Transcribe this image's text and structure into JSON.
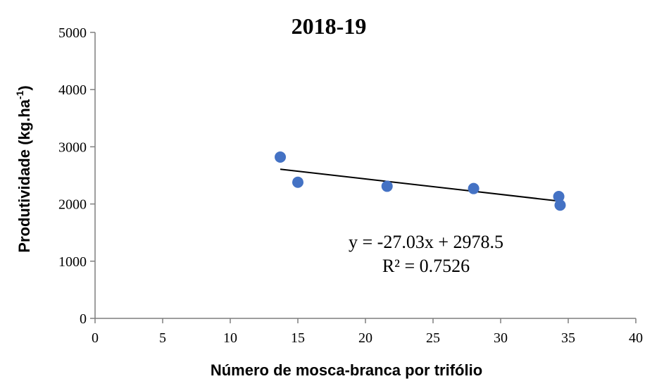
{
  "chart_data": {
    "type": "scatter",
    "title": "2018-19",
    "xlabel": "Número de mosca-branca por trifólio",
    "ylabel_main": "Produtividade (kg.ha",
    "ylabel_sup": "-1",
    "ylabel_close": ")",
    "xlim": [
      0,
      40
    ],
    "ylim": [
      0,
      5000
    ],
    "x_ticks": [
      0,
      5,
      10,
      15,
      20,
      25,
      30,
      35,
      40
    ],
    "y_ticks": [
      0,
      1000,
      2000,
      3000,
      4000,
      5000
    ],
    "grid": false,
    "legend": "none",
    "points": [
      {
        "x": 13.7,
        "y": 2820
      },
      {
        "x": 15.0,
        "y": 2380
      },
      {
        "x": 21.6,
        "y": 2310
      },
      {
        "x": 28.0,
        "y": 2270
      },
      {
        "x": 34.3,
        "y": 2130
      },
      {
        "x": 34.4,
        "y": 1980
      }
    ],
    "trendline": {
      "slope": -27.03,
      "intercept": 2978.5,
      "x_range": [
        13.7,
        34.4
      ],
      "equation": "y = -27.03x + 2978.5",
      "r2": "R² = 0.7526"
    },
    "colors": {
      "point": "#4472c4",
      "trendline": "#000000",
      "axis": "#7f7f7f"
    }
  }
}
